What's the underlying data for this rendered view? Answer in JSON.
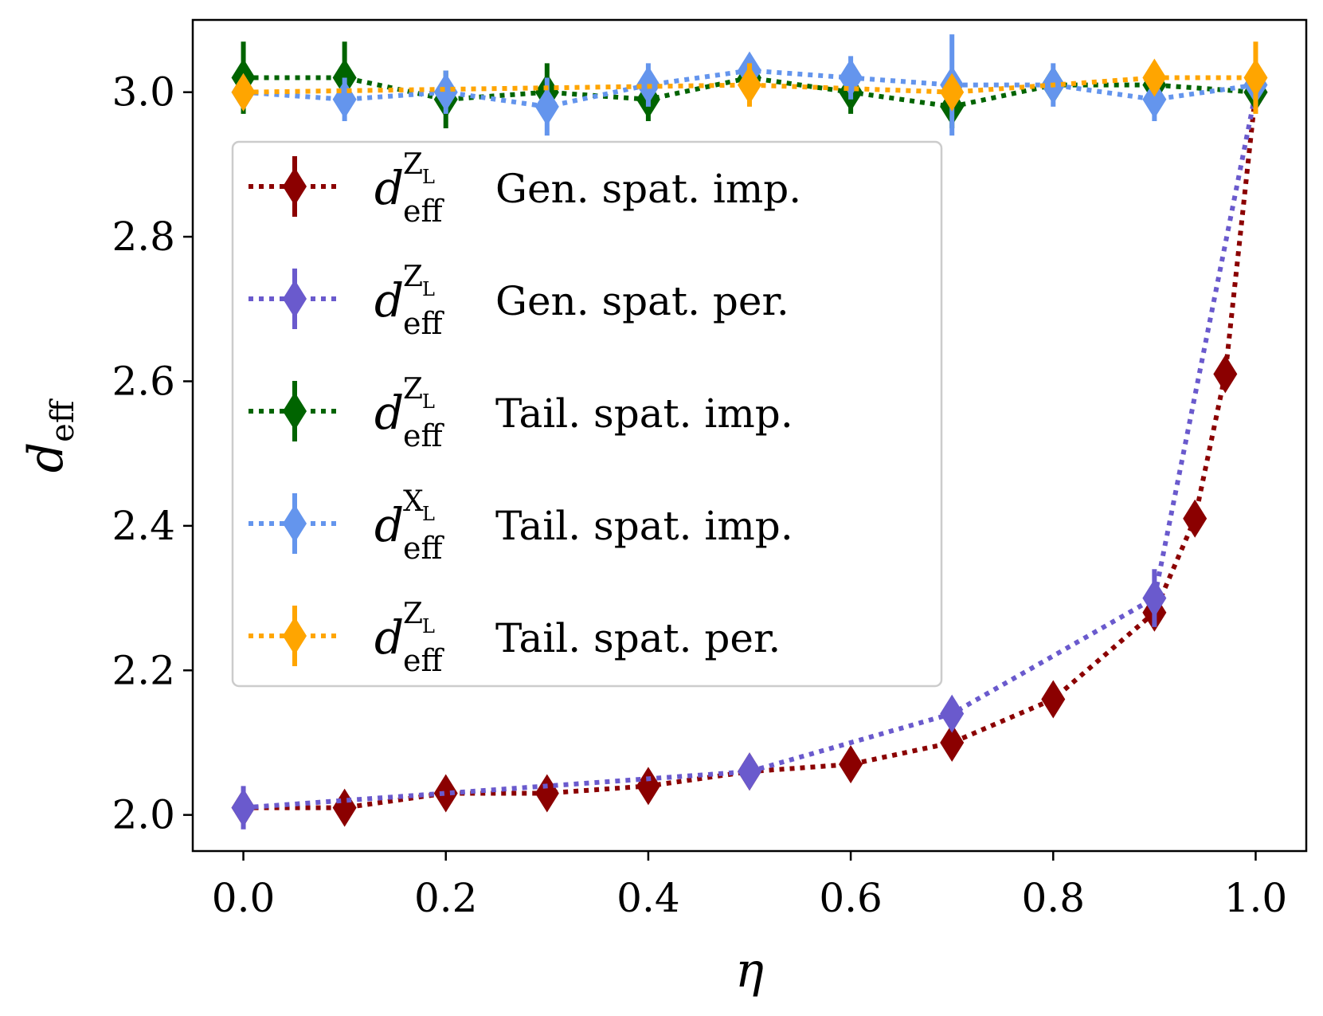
{
  "chart_data": {
    "type": "scatter",
    "xlabel": "η",
    "ylabel": "d_eff",
    "xlim": [
      -0.05,
      1.05
    ],
    "ylim": [
      1.95,
      3.1
    ],
    "xticks": [
      "0.0",
      "0.2",
      "0.4",
      "0.6",
      "0.8",
      "1.0"
    ],
    "yticks": [
      "2.0",
      "2.2",
      "2.4",
      "2.6",
      "2.8",
      "3.0"
    ],
    "legend_position": "upper-left",
    "grid": false,
    "series": [
      {
        "name": "Gen. spat. imp.",
        "symbol": "d",
        "sub": "eff",
        "sup": "Z",
        "supsub": "L",
        "color": "#8b0000",
        "x": [
          0.0,
          0.1,
          0.2,
          0.3,
          0.4,
          0.5,
          0.6,
          0.7,
          0.8,
          0.9,
          0.94,
          0.97,
          1.0
        ],
        "y": [
          2.01,
          2.01,
          2.03,
          2.03,
          2.04,
          2.06,
          2.07,
          2.1,
          2.16,
          2.28,
          2.41,
          2.61,
          3.0
        ],
        "yerr": [
          0.01,
          0.01,
          0.01,
          0.01,
          0.01,
          0.01,
          0.01,
          0.01,
          0.01,
          0.01,
          0.01,
          0.01,
          0.01
        ]
      },
      {
        "name": "Gen. spat. per.",
        "symbol": "d",
        "sub": "eff",
        "sup": "Z",
        "supsub": "L",
        "color": "#6a5acd",
        "x": [
          0.0,
          0.5,
          0.7,
          0.9,
          1.0
        ],
        "y": [
          2.01,
          2.06,
          2.14,
          2.3,
          3.0
        ],
        "yerr": [
          0.03,
          0.02,
          0.02,
          0.04,
          0.01
        ]
      },
      {
        "name": "Tail. spat. imp.",
        "symbol": "d",
        "sub": "eff",
        "sup": "Z",
        "supsub": "L",
        "color": "#006400",
        "x": [
          0.0,
          0.1,
          0.2,
          0.3,
          0.4,
          0.5,
          0.6,
          0.7,
          0.8,
          0.9,
          1.0
        ],
        "y": [
          3.02,
          3.02,
          2.99,
          3.0,
          2.99,
          3.02,
          3.0,
          2.98,
          3.01,
          3.01,
          3.0
        ],
        "yerr": [
          0.05,
          0.05,
          0.04,
          0.04,
          0.03,
          0.02,
          0.03,
          0.03,
          0.02,
          0.02,
          0.02
        ]
      },
      {
        "name": "Tail. spat. imp.",
        "symbol": "d",
        "sub": "eff",
        "sup": "X",
        "supsub": "L",
        "color": "#6495ed",
        "x": [
          0.0,
          0.1,
          0.2,
          0.3,
          0.4,
          0.5,
          0.6,
          0.7,
          0.8,
          0.9,
          1.0
        ],
        "y": [
          3.0,
          2.99,
          3.0,
          2.98,
          3.01,
          3.03,
          3.02,
          3.01,
          3.01,
          2.99,
          3.01
        ],
        "yerr": [
          0.02,
          0.03,
          0.03,
          0.04,
          0.03,
          0.02,
          0.03,
          0.07,
          0.03,
          0.03,
          0.03
        ]
      },
      {
        "name": "Tail. spat. per.",
        "symbol": "d",
        "sub": "eff",
        "sup": "Z",
        "supsub": "L",
        "color": "#ffa500",
        "x": [
          0.0,
          0.5,
          0.7,
          0.9,
          1.0
        ],
        "y": [
          3.0,
          3.01,
          3.0,
          3.02,
          3.02
        ],
        "yerr": [
          0.02,
          0.03,
          0.02,
          0.02,
          0.05
        ]
      }
    ]
  }
}
